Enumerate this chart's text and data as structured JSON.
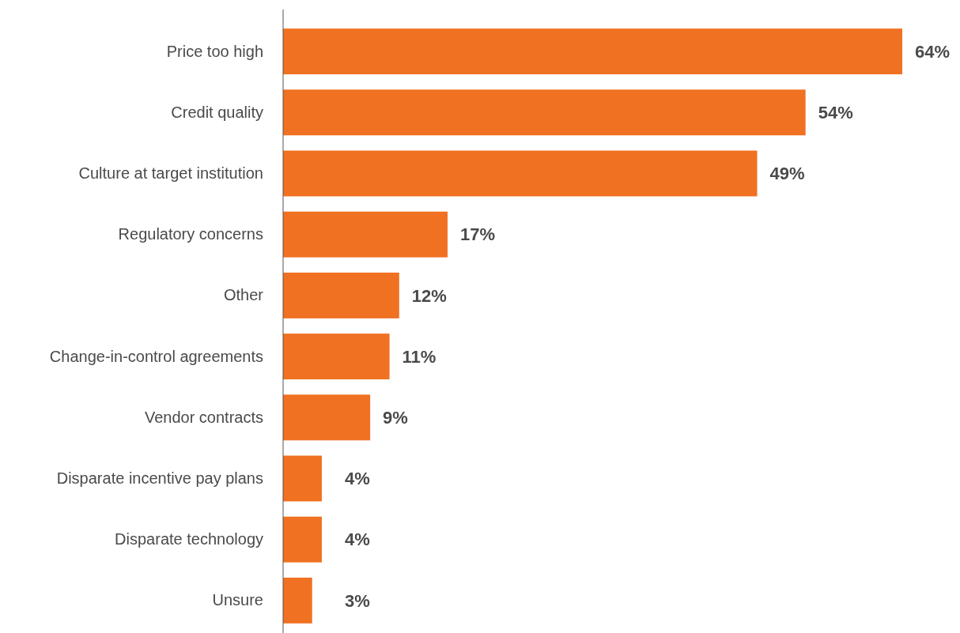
{
  "chart_data": {
    "type": "bar",
    "orientation": "horizontal",
    "categories": [
      "Price too high",
      "Credit quality",
      "Culture at target institution",
      "Regulatory concerns",
      "Other",
      "Change-in-control agreements",
      "Vendor contracts",
      "Disparate incentive pay plans",
      "Disparate technology",
      "Unsure"
    ],
    "values": [
      64,
      54,
      49,
      17,
      12,
      11,
      9,
      4,
      4,
      3
    ],
    "value_labels": [
      "64%",
      "54%",
      "49%",
      "17%",
      "12%",
      "11%",
      "9%",
      "4%",
      "4%",
      "3%"
    ],
    "color": "#f07122"
  }
}
